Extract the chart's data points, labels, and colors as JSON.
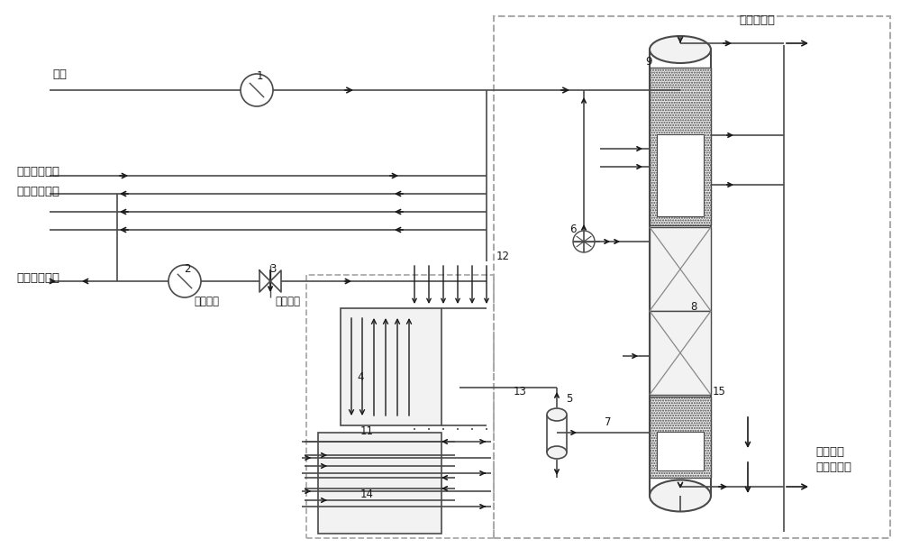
{
  "bg_color": "#ffffff",
  "line_color": "#4a4a4a",
  "dark_color": "#1a1a1a",
  "dashed_color": "#aaaaaa",
  "gray_fill": "#e8e8e8",
  "light_fill": "#f2f2f2",
  "labels": {
    "liquid_oxygen": "液氧",
    "nitrogen_tail": "氮氩精制尾气",
    "chlorine_vent": "含氯废气放空",
    "excess_nitrogen": "余量氮气放空",
    "circ_water_return": "循环水回",
    "circ_water_in": "循环水进",
    "nitrogen_out_top": "氮气出上塔",
    "high_purity_lox": "高纯液氧\n产品出冷箱"
  },
  "fig_w": 10.0,
  "fig_h": 6.08
}
